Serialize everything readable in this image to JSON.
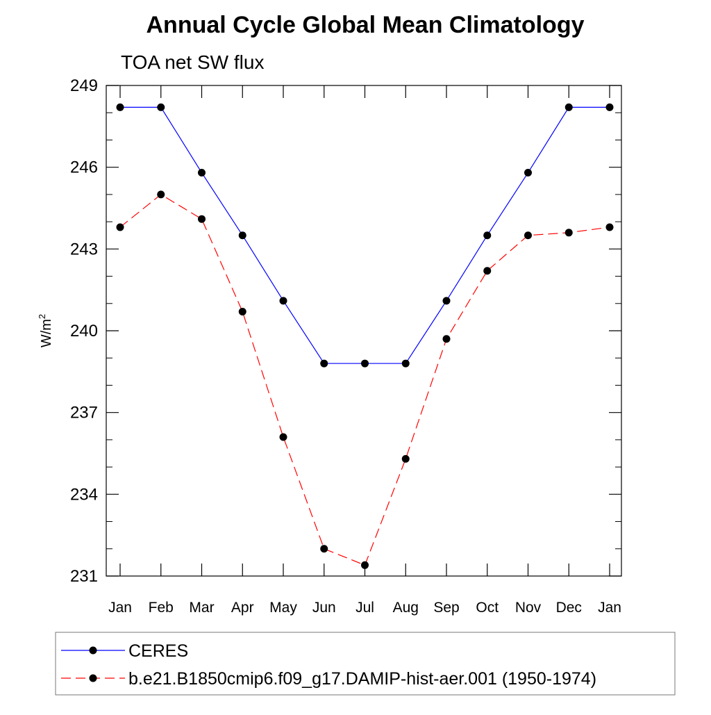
{
  "chart_data": {
    "type": "line",
    "title": "Annual Cycle Global Mean Climatology",
    "subtitle": "TOA net SW flux",
    "ylabel": "W/m",
    "ylabel_superscript": "2",
    "xlabel": "",
    "categories": [
      "Jan",
      "Feb",
      "Mar",
      "Apr",
      "May",
      "Jun",
      "Jul",
      "Aug",
      "Sep",
      "Oct",
      "Nov",
      "Dec",
      "Jan"
    ],
    "ylim": [
      231,
      249
    ],
    "yticks": [
      "249",
      "246",
      "243",
      "240",
      "237",
      "234",
      "231"
    ],
    "grid": false,
    "legend_position": "bottom",
    "series": [
      {
        "name": "CERES",
        "color": "#0000ff",
        "line_style": "solid",
        "marker": "filled-circle",
        "values": [
          248.2,
          248.2,
          245.8,
          243.5,
          241.1,
          238.8,
          238.8,
          238.8,
          241.1,
          243.5,
          245.8,
          248.2,
          248.2
        ]
      },
      {
        "name": "b.e21.B1850cmip6.f09_g17.DAMIP-hist-aer.001 (1950-1974)",
        "color": "#ff0000",
        "line_style": "dashed",
        "marker": "filled-circle",
        "values": [
          243.8,
          245.0,
          244.1,
          240.7,
          236.1,
          232.0,
          231.4,
          235.3,
          239.7,
          242.2,
          243.5,
          243.6,
          243.8
        ]
      }
    ]
  }
}
